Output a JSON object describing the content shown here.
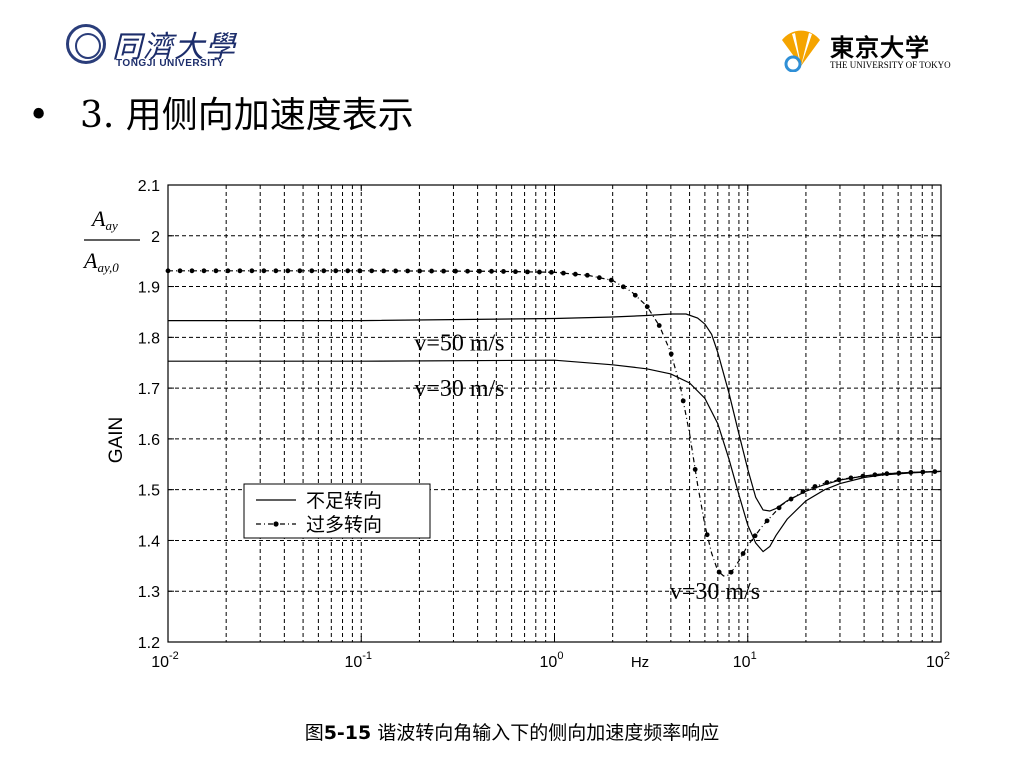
{
  "header": {
    "left_logo": {
      "name_cn": "同濟大學",
      "name_en": "TONGJI UNIVERSITY"
    },
    "right_logo": {
      "name_cn": "東京大学",
      "name_en": "THE UNIVERSITY OF TOKYO"
    },
    "bullet": "•",
    "title": "3. 用侧向加速度表示"
  },
  "caption": {
    "prefix": "图",
    "number": "5-15",
    "text": " 谐波转向角输入下的侧向加速度频率响应"
  },
  "colors": {
    "seal": "#2a3d7a",
    "fan": "#f5a400",
    "fan_accent": "#2f8fd6"
  },
  "chart_data": {
    "type": "line",
    "x_scale": "log",
    "xlim": [
      0.01,
      100
    ],
    "ylim": [
      1.2,
      2.1
    ],
    "ylabel": "GAIN",
    "ylabel_ratio": {
      "numerator": "A",
      "num_sub": "ay",
      "denominator": "A",
      "den_sub": "ay,0"
    },
    "x_unit_label": "Hz",
    "x_ticks": [
      {
        "value": 0.01,
        "base": "10",
        "exp": "-2"
      },
      {
        "value": 0.1,
        "base": "10",
        "exp": "-1"
      },
      {
        "value": 1,
        "base": "10",
        "exp": "0"
      },
      {
        "value": 10,
        "base": "10",
        "exp": "1"
      },
      {
        "value": 100,
        "base": "10",
        "exp": "2"
      }
    ],
    "y_ticks": [
      "1.2",
      "1.3",
      "1.4",
      "1.5",
      "1.6",
      "1.7",
      "1.8",
      "1.9",
      "2",
      "2.1"
    ],
    "grid": true,
    "legend": {
      "placement": "lower-left",
      "entries": [
        {
          "label": "不足转向",
          "style": "solid"
        },
        {
          "label": "过多转向",
          "style": "dash-dot-marker"
        }
      ]
    },
    "annotations": [
      {
        "text": "v=50 m/s",
        "x": 0.5,
        "y": 1.79
      },
      {
        "text": "v=30 m/s",
        "x": 0.5,
        "y": 1.7
      },
      {
        "text": "v=30 m/s",
        "x": 10.5,
        "y": 1.3
      }
    ],
    "series": [
      {
        "style": "solid",
        "x": [
          0.01,
          0.1,
          1,
          2,
          3,
          4,
          4.8,
          5.5,
          6,
          6.5,
          7,
          8,
          9,
          10,
          11,
          12,
          13,
          14,
          16,
          20,
          25,
          30,
          40,
          50,
          70,
          100
        ],
        "y": [
          1.833,
          1.833,
          1.837,
          1.84,
          1.843,
          1.846,
          1.846,
          1.838,
          1.826,
          1.806,
          1.77,
          1.69,
          1.61,
          1.54,
          1.485,
          1.46,
          1.458,
          1.463,
          1.478,
          1.497,
          1.51,
          1.519,
          1.527,
          1.531,
          1.534,
          1.536
        ]
      },
      {
        "style": "solid",
        "x": [
          0.01,
          0.1,
          1,
          2,
          3,
          4,
          5,
          6,
          7,
          8,
          9,
          10,
          11,
          12,
          13,
          14,
          16,
          20,
          25,
          30,
          40,
          50,
          70,
          100
        ],
        "y": [
          1.753,
          1.753,
          1.755,
          1.746,
          1.738,
          1.728,
          1.71,
          1.68,
          1.63,
          1.56,
          1.49,
          1.43,
          1.395,
          1.378,
          1.388,
          1.41,
          1.442,
          1.478,
          1.5,
          1.512,
          1.524,
          1.529,
          1.533,
          1.536
        ]
      },
      {
        "style": "dash-dot-marker",
        "x": [
          0.01,
          0.1,
          0.5,
          1,
          1.5,
          2,
          2.5,
          3,
          3.5,
          4,
          4.5,
          5,
          5.5,
          6,
          6.5,
          7,
          7.5,
          8,
          8.5,
          9,
          10,
          12,
          15,
          20,
          25,
          30,
          40,
          50,
          70,
          100
        ],
        "y": [
          1.931,
          1.931,
          1.93,
          1.928,
          1.922,
          1.912,
          1.89,
          1.862,
          1.822,
          1.77,
          1.7,
          1.61,
          1.51,
          1.43,
          1.375,
          1.34,
          1.33,
          1.332,
          1.345,
          1.36,
          1.39,
          1.43,
          1.47,
          1.5,
          1.513,
          1.52,
          1.527,
          1.531,
          1.534,
          1.536
        ]
      }
    ]
  }
}
